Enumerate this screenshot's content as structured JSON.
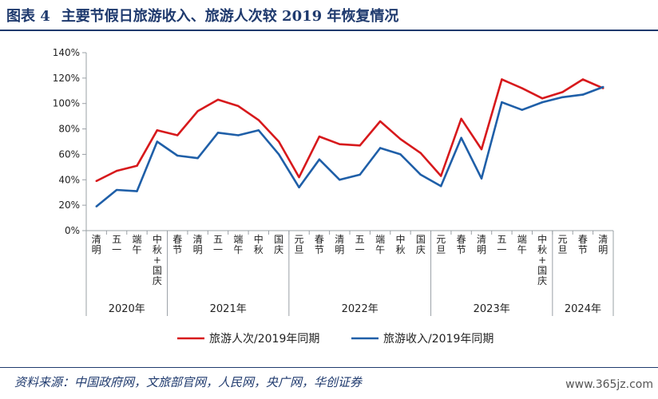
{
  "header": {
    "fig_label": "图表 4",
    "title": "主要节假日旅游收入、旅游人次较 2019 年恢复情况"
  },
  "footer": {
    "source": "资料来源：中国政府网，文旅部官网，人民网，央广网，华创证券",
    "watermark": "www.365jz.com"
  },
  "colors": {
    "series1": "#d7191c",
    "series2": "#1f5fa8"
  },
  "chart_data": {
    "type": "line",
    "categories": [
      "清明",
      "五一",
      "端午",
      "中秋+国庆",
      "春节",
      "清明",
      "五一",
      "端午",
      "中秋",
      "国庆",
      "元旦",
      "春节",
      "清明",
      "五一",
      "端午",
      "中秋",
      "国庆",
      "元旦",
      "春节",
      "清明",
      "五一",
      "端午",
      "中秋+国庆",
      "元旦",
      "春节",
      "清明"
    ],
    "year_groups": [
      {
        "label": "2020年",
        "start": 0,
        "end": 3
      },
      {
        "label": "2021年",
        "start": 4,
        "end": 9
      },
      {
        "label": "2022年",
        "start": 10,
        "end": 16
      },
      {
        "label": "2023年",
        "start": 17,
        "end": 22
      },
      {
        "label": "2024年",
        "start": 23,
        "end": 25
      }
    ],
    "series": [
      {
        "name": "旅游人次/2019年同期",
        "values": [
          39,
          47,
          51,
          79,
          75,
          94,
          103,
          98,
          87,
          70,
          42,
          74,
          68,
          67,
          86,
          72,
          61,
          43,
          88,
          64,
          119,
          112,
          104,
          109,
          119,
          112
        ]
      },
      {
        "name": "旅游收入/2019年同期",
        "values": [
          19,
          32,
          31,
          70,
          59,
          57,
          77,
          75,
          79,
          60,
          34,
          56,
          40,
          44,
          65,
          60,
          44,
          35,
          73,
          41,
          101,
          95,
          101,
          105,
          107,
          113
        ]
      }
    ],
    "ylim": [
      0,
      140
    ],
    "yticks": [
      0,
      20,
      40,
      60,
      80,
      100,
      120,
      140
    ],
    "ytick_labels": [
      "0%",
      "20%",
      "40%",
      "60%",
      "80%",
      "100%",
      "120%",
      "140%"
    ],
    "grid": false,
    "legend": "bottom"
  }
}
